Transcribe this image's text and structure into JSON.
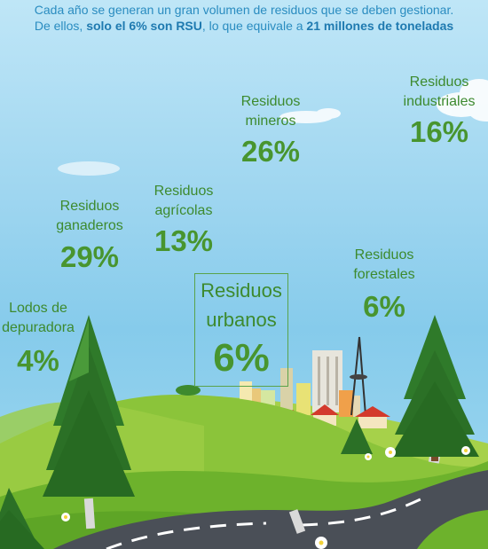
{
  "intro": {
    "line1": "Cada año se generan un gran volumen de residuos que se deben gestionar.",
    "line2_a": "De ellos, ",
    "line2_b": "solo el 6% son RSU",
    "line2_c": ", lo que equivale a ",
    "line2_d": "21 millones de toneladas"
  },
  "items": {
    "mineros": {
      "line1": "Residuos",
      "line2": "mineros",
      "pct": "26%"
    },
    "industriales": {
      "line1": "Residuos",
      "line2": "industriales",
      "pct": "16%"
    },
    "agricolas": {
      "line1": "Residuos",
      "line2": "agrícolas",
      "pct": "13%"
    },
    "ganaderos": {
      "line1": "Residuos",
      "line2": "ganaderos",
      "pct": "29%"
    },
    "forestales": {
      "line1": "Residuos",
      "line2": "forestales",
      "pct": "6%"
    },
    "lodos": {
      "line1": "Lodos de",
      "line2": "depuradora",
      "pct": "4%"
    },
    "urbanos": {
      "line1": "Residuos",
      "line2": "urbanos",
      "pct": "6%"
    }
  },
  "colors": {
    "text_green": "#48952f",
    "intro_blue": "#2a8cc0",
    "grass": "#7fc23a",
    "road": "#4a4f57"
  }
}
